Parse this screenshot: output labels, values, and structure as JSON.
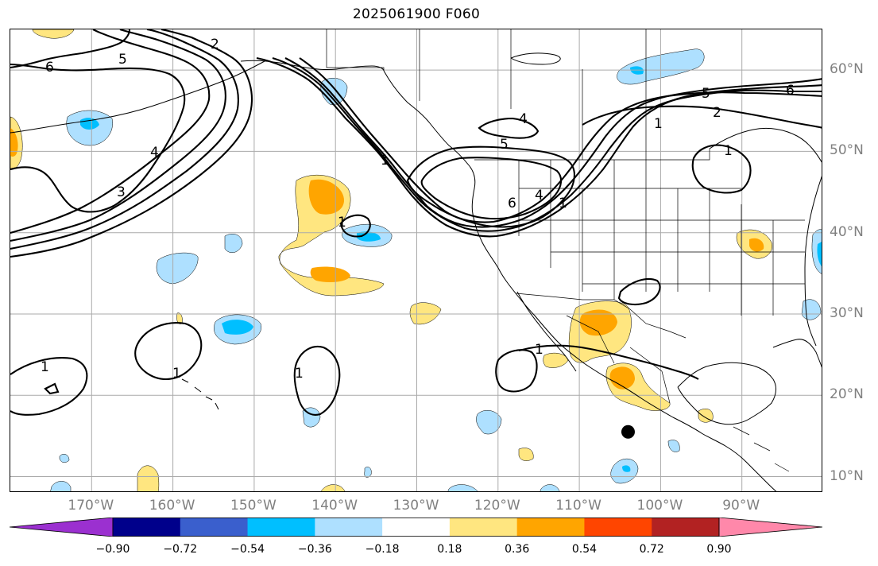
{
  "title": "2025061900 F060",
  "map": {
    "type": "map",
    "projection": "plate-carree",
    "lon_range": [
      -180,
      -80
    ],
    "lat_range": [
      8,
      65
    ],
    "grid": true,
    "lon_labels": [
      "170°W",
      "160°W",
      "150°W",
      "140°W",
      "130°W",
      "120°W",
      "110°W",
      "100°W",
      "90°W"
    ],
    "lat_labels": [
      "60°N",
      "50°N",
      "40°N",
      "30°N",
      "20°N",
      "10°N"
    ],
    "contour_labels": [
      "6",
      "5",
      "2",
      "4",
      "3",
      "1",
      "1",
      "1",
      "1",
      "1",
      "1",
      "4",
      "5",
      "6",
      "4",
      "1",
      "5",
      "2",
      "6",
      "1",
      "1"
    ],
    "marker": {
      "lon": -104,
      "lat": 15.5,
      "label": ""
    },
    "colors": {
      "grid": "#aaaaaa",
      "land_outline": "#000000",
      "contour": "#000000",
      "axis_label": "#808080"
    }
  },
  "colorbar": {
    "ticks": [
      "−0.90",
      "−0.72",
      "−0.54",
      "−0.36",
      "−0.18",
      "0.18",
      "0.36",
      "0.54",
      "0.72",
      "0.90"
    ],
    "colors": [
      "#9b30d0",
      "#00008b",
      "#3a5fcd",
      "#00bfff",
      "#aee0ff",
      "#ffffff",
      "#ffe680",
      "#ffa500",
      "#ff4500",
      "#b22222",
      "#ff88aa"
    ]
  }
}
